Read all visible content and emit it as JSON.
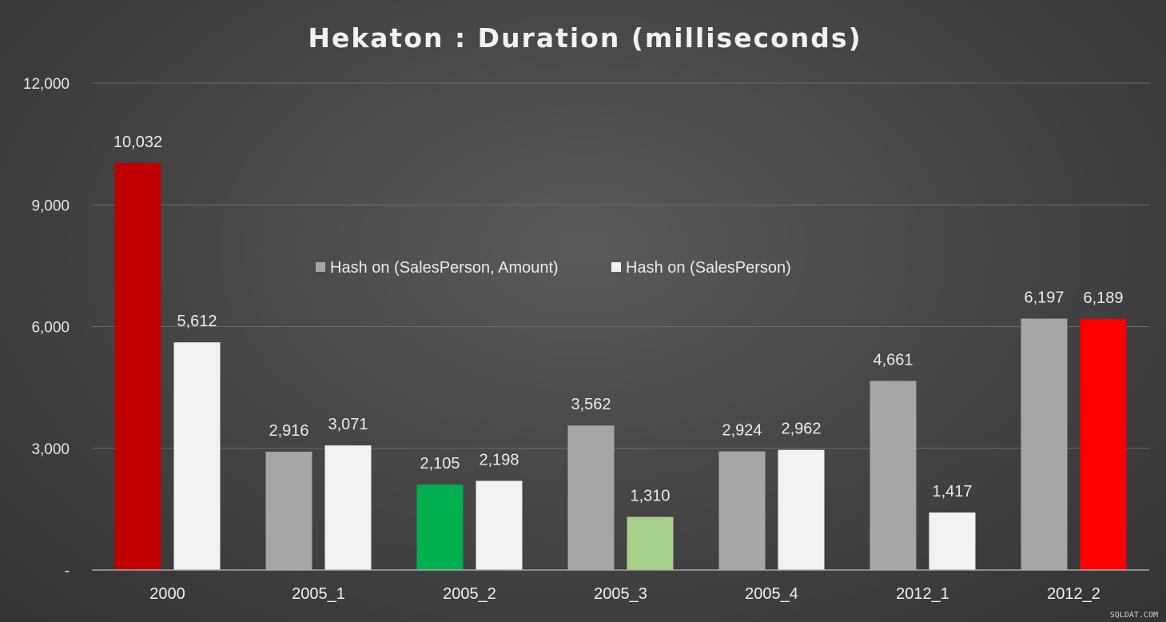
{
  "chart_data": {
    "type": "bar",
    "title": "Hekaton : Duration (milliseconds)",
    "xlabel": "",
    "ylabel": "",
    "ylim": [
      0,
      12000
    ],
    "yticks": [
      0,
      3000,
      6000,
      9000,
      12000
    ],
    "ytick_labels": [
      "-",
      "3,000",
      "6,000",
      "9,000",
      "12,000"
    ],
    "categories": [
      "2000",
      "2005_1",
      "2005_2",
      "2005_3",
      "2005_4",
      "2012_1",
      "2012_2"
    ],
    "series": [
      {
        "name": "Hash on (SalesPerson, Amount)",
        "color": "#a6a6a6",
        "values": [
          10032,
          2916,
          2105,
          3562,
          2924,
          4661,
          6197
        ],
        "labels": [
          "10,032",
          "2,916",
          "2,105",
          "3,562",
          "2,924",
          "4,661",
          "6,197"
        ],
        "point_colors": [
          "#c00000",
          null,
          "#00b050",
          null,
          null,
          null,
          null
        ]
      },
      {
        "name": "Hash on (SalesPerson)",
        "color": "#f2f2f2",
        "values": [
          5612,
          3071,
          2198,
          1310,
          2962,
          1417,
          6189
        ],
        "labels": [
          "5,612",
          "3,071",
          "2,198",
          "1,310",
          "2,962",
          "1,417",
          "6,189"
        ],
        "point_colors": [
          null,
          null,
          null,
          "#a9d18e",
          null,
          null,
          "#ff0000"
        ]
      }
    ],
    "grid": true,
    "legend_position": "top-center"
  },
  "watermark": "SQLDAT.COM"
}
